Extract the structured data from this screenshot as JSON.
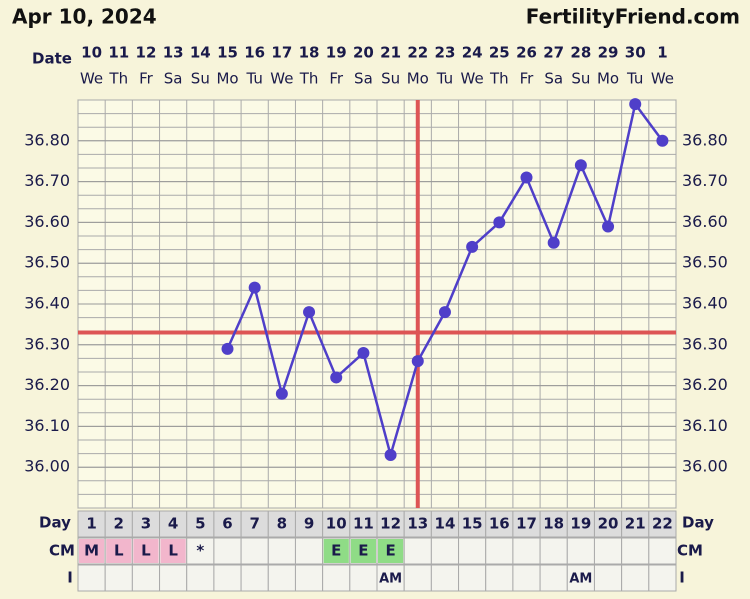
{
  "chart_data": {
    "type": "line",
    "title": "Apr 10, 2024",
    "site": "FertilityFriend.com",
    "date_label": "Date",
    "dates": [
      "10",
      "11",
      "12",
      "13",
      "14",
      "15",
      "16",
      "17",
      "18",
      "19",
      "20",
      "21",
      "22",
      "23",
      "24",
      "25",
      "26",
      "27",
      "28",
      "29",
      "30",
      "1"
    ],
    "weekdays": [
      "We",
      "Th",
      "Fr",
      "Sa",
      "Su",
      "Mo",
      "Tu",
      "We",
      "Th",
      "Fr",
      "Sa",
      "Su",
      "Mo",
      "Tu",
      "We",
      "Th",
      "Fr",
      "Sa",
      "Su",
      "Mo",
      "Tu",
      "We"
    ],
    "values": [
      null,
      null,
      null,
      null,
      null,
      36.29,
      36.44,
      36.18,
      36.38,
      36.22,
      36.28,
      36.03,
      36.26,
      36.38,
      36.54,
      36.6,
      36.71,
      36.55,
      36.74,
      36.59,
      36.89,
      36.8
    ],
    "color": "#4f3fc9",
    "ylim": [
      35.9,
      36.9
    ],
    "yticks": [
      {
        "value": 36.0,
        "label": "36.00"
      },
      {
        "value": 36.1,
        "label": "36.10"
      },
      {
        "value": 36.2,
        "label": "36.20"
      },
      {
        "value": 36.3,
        "label": "36.30"
      },
      {
        "value": 36.4,
        "label": "36.40"
      },
      {
        "value": 36.5,
        "label": "36.50"
      },
      {
        "value": 36.6,
        "label": "36.60"
      },
      {
        "value": 36.7,
        "label": "36.70"
      },
      {
        "value": 36.8,
        "label": "36.80"
      }
    ],
    "coverline": 36.33,
    "coverline_color": "#dd5555",
    "ovulation_day": 13,
    "day_label": "Day",
    "days": [
      1,
      2,
      3,
      4,
      5,
      6,
      7,
      8,
      9,
      10,
      11,
      12,
      13,
      14,
      15,
      16,
      17,
      18,
      19,
      20,
      21,
      22
    ],
    "cm_label": "CM",
    "cm": [
      "M",
      "L",
      "L",
      "L",
      "*",
      null,
      null,
      null,
      null,
      "E",
      "E",
      "E",
      null,
      null,
      null,
      null,
      null,
      null,
      null,
      null,
      null,
      null
    ],
    "cm_colors": {
      "M": "#f2b6cc",
      "L": "#f2b6cc",
      "E": "#8fdc86"
    },
    "i_label": "I",
    "intercourse": [
      null,
      null,
      null,
      null,
      null,
      null,
      null,
      null,
      null,
      null,
      null,
      "AM",
      null,
      null,
      null,
      null,
      null,
      null,
      "AM",
      null,
      null,
      null
    ]
  }
}
